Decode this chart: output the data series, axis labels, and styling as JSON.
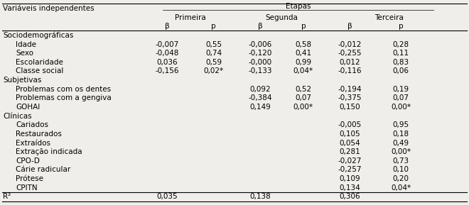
{
  "title_etapas": "Etapas",
  "col_header_1": "Variáveis independentes",
  "col_header_primeira": "Primeira",
  "col_header_segunda": "Segunda",
  "col_header_terceira": "Terceira",
  "col_beta": "β",
  "col_p": "p",
  "rows": [
    {
      "label": "Sociodemográficas",
      "level": 0,
      "b1": "",
      "p1": "",
      "b2": "",
      "p2": "",
      "b3": "",
      "p3": ""
    },
    {
      "label": "Idade",
      "level": 1,
      "b1": "-0,007",
      "p1": "0,55",
      "b2": "-0,006",
      "p2": "0,58",
      "b3": "-0,012",
      "p3": "0,28"
    },
    {
      "label": "Sexo",
      "level": 1,
      "b1": "-0,048",
      "p1": "0,74",
      "b2": "-0,120",
      "p2": "0,41",
      "b3": "-0,255",
      "p3": "0,11"
    },
    {
      "label": "Escolaridade",
      "level": 1,
      "b1": "0,036",
      "p1": "0,59",
      "b2": "-0,000",
      "p2": "0,99",
      "b3": "0,012",
      "p3": "0,83"
    },
    {
      "label": "Classe social",
      "level": 1,
      "b1": "-0,156",
      "p1": "0,02*",
      "b2": "-0,133",
      "p2": "0,04*",
      "b3": "-0,116",
      "p3": "0,06"
    },
    {
      "label": "Subjetivas",
      "level": 0,
      "b1": "",
      "p1": "",
      "b2": "",
      "p2": "",
      "b3": "",
      "p3": ""
    },
    {
      "label": "Problemas com os dentes",
      "level": 1,
      "b1": "",
      "p1": "",
      "b2": "0,092",
      "p2": "0,52",
      "b3": "-0,194",
      "p3": "0,19"
    },
    {
      "label": "Problemas com a gengiva",
      "level": 1,
      "b1": "",
      "p1": "",
      "b2": "-0,384",
      "p2": "0,07",
      "b3": "-0,375",
      "p3": "0,07"
    },
    {
      "label": "GOHAI",
      "level": 1,
      "b1": "",
      "p1": "",
      "b2": "0,149",
      "p2": "0,00*",
      "b3": "0,150",
      "p3": "0,00*"
    },
    {
      "label": "Clínicas",
      "level": 0,
      "b1": "",
      "p1": "",
      "b2": "",
      "p2": "",
      "b3": "",
      "p3": ""
    },
    {
      "label": "Cariados",
      "level": 1,
      "b1": "",
      "p1": "",
      "b2": "",
      "p2": "",
      "b3": "-0,005",
      "p3": "0,95"
    },
    {
      "label": "Restaurados",
      "level": 1,
      "b1": "",
      "p1": "",
      "b2": "",
      "p2": "",
      "b3": "0,105",
      "p3": "0,18"
    },
    {
      "label": "Extraídos",
      "level": 1,
      "b1": "",
      "p1": "",
      "b2": "",
      "p2": "",
      "b3": "0,054",
      "p3": "0,49"
    },
    {
      "label": "Extração indicada",
      "level": 1,
      "b1": "",
      "p1": "",
      "b2": "",
      "p2": "",
      "b3": "0,281",
      "p3": "0,00*"
    },
    {
      "label": "CPO-D",
      "level": 1,
      "b1": "",
      "p1": "",
      "b2": "",
      "p2": "",
      "b3": "-0,027",
      "p3": "0,73"
    },
    {
      "label": "Cárie radicular",
      "level": 1,
      "b1": "",
      "p1": "",
      "b2": "",
      "p2": "",
      "b3": "-0,257",
      "p3": "0,10"
    },
    {
      "label": "Prótese",
      "level": 1,
      "b1": "",
      "p1": "",
      "b2": "",
      "p2": "",
      "b3": "0,109",
      "p3": "0,20"
    },
    {
      "label": "CPITN",
      "level": 1,
      "b1": "",
      "p1": "",
      "b2": "",
      "p2": "",
      "b3": "0,134",
      "p3": "0,04*"
    },
    {
      "label": "R²",
      "level": 2,
      "b1": "0,035",
      "p1": "",
      "b2": "0,138",
      "p2": "",
      "b3": "0,306",
      "p3": ""
    }
  ],
  "col_label": 0.002,
  "col_b1": 0.355,
  "col_p1": 0.455,
  "col_b2": 0.555,
  "col_p2": 0.648,
  "col_b3": 0.748,
  "col_p3": 0.858,
  "bg_color": "#f0eeea",
  "text_color": "#000000",
  "font_size": 7.5,
  "figsize": [
    6.6,
    2.89
  ],
  "dpi": 100
}
